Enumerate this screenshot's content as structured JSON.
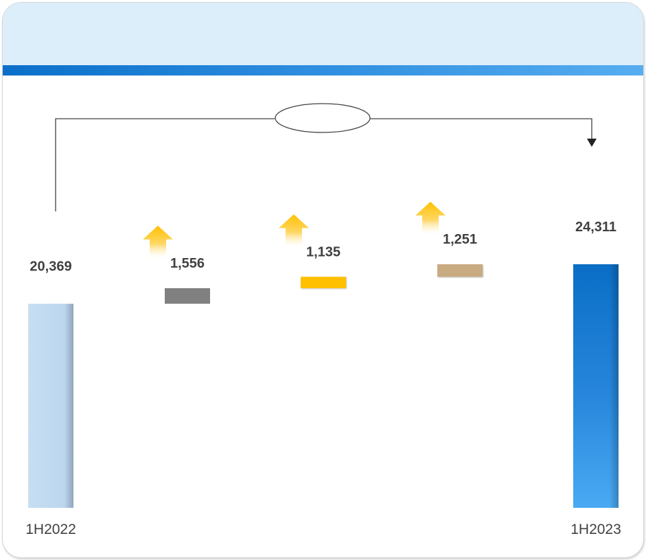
{
  "chart_data": {
    "type": "bar",
    "subtype": "waterfall",
    "title": "",
    "xlabel": "",
    "ylabel": "",
    "categories": [
      "1H2022",
      "",
      "",
      "",
      "1H2023"
    ],
    "values": [
      20369,
      1556,
      1135,
      1251,
      24311
    ],
    "value_labels": [
      "20,369",
      "1,556",
      "1,135",
      "1,251",
      "24,311"
    ],
    "bar_roles": [
      "total",
      "increase",
      "increase",
      "increase",
      "total"
    ],
    "colors": [
      "#bdd7ee",
      "#808080",
      "#ffc000",
      "#c9ab82",
      "#0a71c8"
    ],
    "increase_marker": "up-arrow-icon",
    "increase_marker_color": "#ffc000",
    "connector": "bracket-arrow from 1H2022 to 1H2023 with empty oval label",
    "grid": false,
    "legend": "none"
  }
}
